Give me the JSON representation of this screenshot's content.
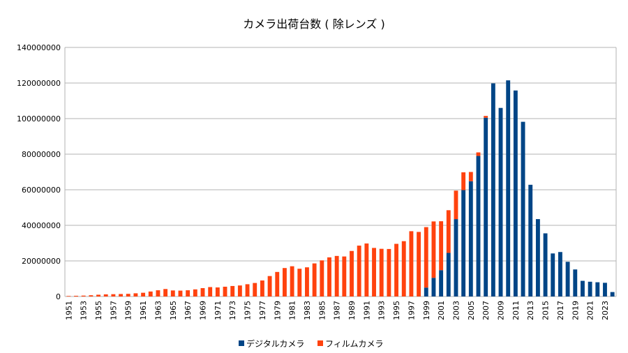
{
  "chart_data": {
    "type": "bar",
    "stacked": true,
    "title": "カメラ出荷台数 ( 除レンズ )",
    "xlabel": "",
    "ylabel": "",
    "ylim": [
      0,
      140000000
    ],
    "yticks": [
      "0",
      "20000000",
      "40000000",
      "60000000",
      "80000000",
      "100000000",
      "120000000",
      "140000000"
    ],
    "grid": true,
    "legend_position": "bottom",
    "categories": [
      "1951",
      "1952",
      "1953",
      "1954",
      "1955",
      "1956",
      "1957",
      "1958",
      "1959",
      "1960",
      "1961",
      "1962",
      "1963",
      "1964",
      "1965",
      "1966",
      "1967",
      "1968",
      "1969",
      "1970",
      "1971",
      "1972",
      "1973",
      "1974",
      "1975",
      "1976",
      "1977",
      "1978",
      "1979",
      "1980",
      "1981",
      "1982",
      "1983",
      "1984",
      "1985",
      "1986",
      "1987",
      "1988",
      "1989",
      "1990",
      "1991",
      "1992",
      "1993",
      "1994",
      "1995",
      "1996",
      "1997",
      "1998",
      "1999",
      "2000",
      "2001",
      "2002",
      "2003",
      "2004",
      "2005",
      "2006",
      "2007",
      "2008",
      "2009",
      "2010",
      "2011",
      "2012",
      "2013",
      "2014",
      "2015",
      "2016",
      "2017",
      "2018",
      "2019",
      "2020",
      "2021",
      "2022",
      "2023",
      "2024"
    ],
    "xtick_labels": [
      "1951",
      "1953",
      "1955",
      "1957",
      "1959",
      "1961",
      "1963",
      "1965",
      "1967",
      "1969",
      "1971",
      "1973",
      "1975",
      "1977",
      "1979",
      "1981",
      "1983",
      "1985",
      "1987",
      "1989",
      "1991",
      "1993",
      "1995",
      "1997",
      "1999",
      "2001",
      "2003",
      "2005",
      "2007",
      "2009",
      "2011",
      "2013",
      "2015",
      "2017",
      "2019",
      "2021",
      "2023"
    ],
    "series": [
      {
        "name": "デジタルカメラ",
        "color": "#004586",
        "values": [
          0,
          0,
          0,
          0,
          0,
          0,
          0,
          0,
          0,
          0,
          0,
          0,
          0,
          0,
          0,
          0,
          0,
          0,
          0,
          0,
          0,
          0,
          0,
          0,
          0,
          0,
          0,
          0,
          0,
          0,
          0,
          0,
          0,
          0,
          0,
          0,
          0,
          0,
          0,
          0,
          0,
          0,
          0,
          0,
          0,
          0,
          0,
          0,
          5000000,
          10500000,
          14800000,
          24500000,
          43500000,
          59800000,
          64800000,
          79000000,
          100500000,
          119800000,
          106000000,
          121500000,
          115800000,
          98200000,
          62800000,
          43500000,
          35500000,
          24200000,
          25000000,
          19500000,
          15200000,
          8800000,
          8300000,
          8000000,
          7700000,
          2500000
        ]
      },
      {
        "name": "フィルムカメラ",
        "color": "#ff420e",
        "values": [
          300000,
          400000,
          500000,
          700000,
          1000000,
          1200000,
          1300000,
          1400000,
          1500000,
          1800000,
          2100000,
          2800000,
          3500000,
          4200000,
          3400000,
          3300000,
          3500000,
          4000000,
          4700000,
          5300000,
          5100000,
          5500000,
          5900000,
          6200000,
          6900000,
          7600000,
          9000000,
          11500000,
          13800000,
          16000000,
          17000000,
          15600000,
          16400000,
          18600000,
          20300000,
          22000000,
          22800000,
          22500000,
          25600000,
          28600000,
          29800000,
          27300000,
          26800000,
          26700000,
          29600000,
          31100000,
          36700000,
          36300000,
          34000000,
          31700000,
          27500000,
          24000000,
          16000000,
          10000000,
          5200000,
          2000000,
          1000000,
          0,
          0,
          0,
          0,
          0,
          0,
          0,
          0,
          0,
          0,
          0,
          0,
          0,
          0,
          0,
          0,
          0
        ]
      }
    ]
  }
}
